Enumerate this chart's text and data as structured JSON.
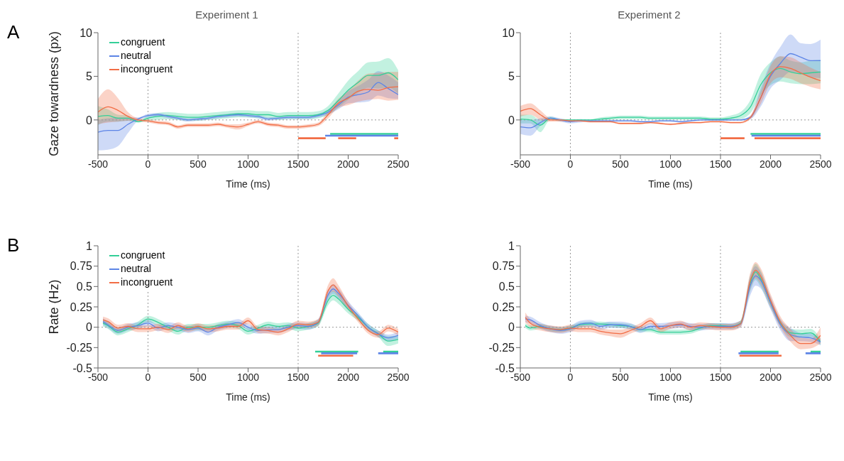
{
  "chart_data": [
    {
      "type": "line",
      "title": "Experiment 1",
      "xlabel": "Time (ms)",
      "ylabel": "Gaze towardness (px)",
      "annotations": [
        "A"
      ],
      "legend": "top left",
      "line_style": "solid",
      "xlim": [
        -500,
        2500
      ],
      "xticks": [
        -500,
        0,
        500,
        1000,
        1500,
        2000,
        2500
      ],
      "ylim": [
        -4,
        10
      ],
      "yticks": [
        0,
        5,
        10
      ],
      "x": [
        -500,
        -400,
        -300,
        -200,
        -100,
        0,
        100,
        200,
        300,
        400,
        500,
        600,
        700,
        800,
        900,
        1000,
        1100,
        1200,
        1300,
        1400,
        1500,
        1600,
        1700,
        1800,
        1900,
        2000,
        2100,
        2200,
        2300,
        2400,
        2500
      ],
      "ref_lines": [
        {
          "axis": "x",
          "value": 0,
          "line_style": "dotted",
          "color": "#999999"
        },
        {
          "axis": "x",
          "value": 1500,
          "line_style": "dotted",
          "color": "#999999"
        },
        {
          "axis": "y",
          "value": 0,
          "line_style": "dotted",
          "color": "#999999"
        }
      ],
      "series": [
        {
          "name": "congruent",
          "color": "#34cf98",
          "values": [
            0.4,
            0.5,
            0.2,
            0.2,
            -0.2,
            0.2,
            0.4,
            0.5,
            0.4,
            0.3,
            0.3,
            0.4,
            0.5,
            0.6,
            0.7,
            0.7,
            0.6,
            0.6,
            0.4,
            0.5,
            0.5,
            0.5,
            0.6,
            1.1,
            2.2,
            3.4,
            4.3,
            5.1,
            5.1,
            5.4,
            4.6
          ],
          "lower": [
            -0.6,
            -0.2,
            -0.2,
            -0.1,
            -0.3,
            -0.1,
            0,
            0.1,
            0,
            -0.1,
            -0.1,
            0,
            0.1,
            0.2,
            0.3,
            0.3,
            0.2,
            0.2,
            0,
            0.1,
            0.1,
            0.1,
            0.2,
            0.6,
            1.4,
            2.3,
            3.1,
            3.7,
            3.6,
            3.7,
            3.0
          ],
          "upper": [
            1.6,
            1.2,
            0.6,
            0.5,
            -0.1,
            0.5,
            0.8,
            0.9,
            0.8,
            0.7,
            0.7,
            0.8,
            0.9,
            1.0,
            1.1,
            1.1,
            1.0,
            1.0,
            0.8,
            0.9,
            0.9,
            0.9,
            1.0,
            1.6,
            3.0,
            4.5,
            5.6,
            6.6,
            6.7,
            7.1,
            5.7
          ]
        },
        {
          "name": "neutral",
          "color": "#5d85e6",
          "values": [
            -1.4,
            -1.2,
            -1.2,
            -0.5,
            0.1,
            0.5,
            0.6,
            0.4,
            0.2,
            0,
            0.1,
            0.2,
            0.4,
            0.5,
            0.6,
            0.5,
            0.4,
            0.1,
            0.2,
            0.3,
            0.3,
            0.3,
            0.5,
            0.9,
            1.7,
            2.6,
            2.9,
            3.2,
            4.3,
            3.6,
            2.9
          ],
          "lower": [
            -3.5,
            -3.4,
            -3.0,
            -1.5,
            -0.1,
            0.3,
            0.4,
            0.2,
            0,
            -0.2,
            -0.1,
            0,
            0.2,
            0.3,
            0.4,
            0.3,
            0.2,
            -0.1,
            0,
            0.1,
            0.1,
            0.1,
            0.3,
            0.6,
            1.2,
            1.9,
            2.0,
            2.1,
            2.8,
            2.5,
            2.4
          ],
          "upper": [
            0.0,
            0.2,
            0.3,
            0.3,
            0.3,
            0.7,
            0.8,
            0.6,
            0.4,
            0.2,
            0.3,
            0.4,
            0.6,
            0.7,
            0.8,
            0.7,
            0.6,
            0.3,
            0.4,
            0.5,
            0.5,
            0.5,
            0.7,
            1.2,
            2.2,
            3.3,
            3.9,
            4.6,
            5.6,
            5.1,
            4.3
          ]
        },
        {
          "name": "incongruent",
          "color": "#f26d45",
          "values": [
            0.9,
            1.5,
            1.1,
            0.4,
            0,
            -0.1,
            -0.3,
            -0.4,
            -0.8,
            -0.6,
            -0.6,
            -0.6,
            -0.5,
            -0.7,
            -0.8,
            -0.5,
            -0.2,
            -0.5,
            -0.6,
            -0.8,
            -0.8,
            -0.7,
            -0.5,
            0.6,
            1.9,
            2.5,
            3.3,
            3.5,
            3.4,
            3.7,
            3.8
          ],
          "lower": [
            -0.5,
            -0.3,
            -0.2,
            -0.1,
            -0.2,
            -0.3,
            -0.5,
            -0.6,
            -1.0,
            -0.8,
            -0.8,
            -0.8,
            -0.7,
            -0.9,
            -1.1,
            -0.7,
            -0.4,
            -0.7,
            -0.8,
            -1.0,
            -1.0,
            -0.9,
            -0.7,
            0.2,
            1.4,
            1.7,
            2.1,
            2.3,
            2.4,
            2.2,
            2.3
          ],
          "upper": [
            2.4,
            3.5,
            2.5,
            0.9,
            0.2,
            0.1,
            -0.1,
            -0.2,
            -0.6,
            -0.4,
            -0.4,
            -0.4,
            -0.3,
            -0.5,
            -0.5,
            -0.3,
            0,
            -0.3,
            -0.4,
            -0.6,
            -0.6,
            -0.5,
            -0.3,
            1.0,
            2.4,
            3.3,
            4.5,
            5.3,
            5.4,
            5.5,
            5.5
          ]
        },
        {
          "color": "#34cf98",
          "x": [
            1820,
            2500
          ],
          "values": [
            -1.6,
            -1.6
          ]
        },
        {
          "color": "#5d85e6",
          "x": [
            1770,
            2500
          ],
          "values": [
            -1.8,
            -1.8
          ]
        },
        {
          "color": "#f26d45",
          "x": [
            1500,
            1775,
            1776,
            1900,
            2080,
            2081,
            2460,
            2500
          ],
          "values": [
            -2.1,
            -2.1,
            null,
            -2.1,
            -2.1,
            null,
            -2.1,
            -2.1
          ]
        }
      ]
    },
    {
      "type": "line",
      "title": "Experiment 2",
      "xlabel": "Time (ms)",
      "line_style": "solid",
      "xlim": [
        -500,
        2500
      ],
      "xticks": [
        -500,
        0,
        500,
        1000,
        1500,
        2000,
        2500
      ],
      "ylim": [
        -4,
        10
      ],
      "yticks": [
        0,
        5,
        10
      ],
      "x": [
        -500,
        -400,
        -300,
        -200,
        -100,
        0,
        100,
        200,
        300,
        400,
        500,
        600,
        700,
        800,
        900,
        1000,
        1100,
        1200,
        1300,
        1400,
        1500,
        1600,
        1700,
        1800,
        1900,
        2000,
        2100,
        2200,
        2300,
        2400,
        2500
      ],
      "ref_lines": [
        {
          "axis": "x",
          "value": 0,
          "line_style": "dotted",
          "color": "#999999"
        },
        {
          "axis": "x",
          "value": 1500,
          "line_style": "dotted",
          "color": "#999999"
        },
        {
          "axis": "y",
          "value": 0,
          "line_style": "dotted",
          "color": "#999999"
        }
      ],
      "series": [
        {
          "color": "#34cf98",
          "values": [
            0.1,
            0.0,
            -0.6,
            0.2,
            0,
            0,
            0,
            0,
            0.1,
            0.2,
            0.3,
            0.3,
            0.3,
            0.2,
            0.2,
            0.2,
            0.2,
            0.2,
            0.2,
            0.1,
            0.1,
            0.2,
            0.5,
            1.5,
            4.0,
            5.4,
            5.9,
            5.5,
            5.3,
            5.4,
            5.5
          ],
          "lower": [
            -0.4,
            -0.4,
            -1.4,
            0,
            -0.1,
            -0.1,
            -0.1,
            -0.1,
            -0.1,
            0,
            0.1,
            0.1,
            0.1,
            0,
            0,
            0,
            0,
            0,
            0,
            -0.1,
            -0.1,
            0,
            0.1,
            0.8,
            2.8,
            4.0,
            4.4,
            4.2,
            4.1,
            4.1,
            4.2
          ],
          "upper": [
            0.6,
            0.6,
            0,
            0.4,
            0.1,
            0.1,
            0.1,
            0.1,
            0.3,
            0.4,
            0.5,
            0.5,
            0.5,
            0.4,
            0.4,
            0.4,
            0.4,
            0.4,
            0.4,
            0.3,
            0.3,
            0.5,
            0.9,
            2.3,
            5.2,
            6.6,
            7.3,
            6.8,
            6.6,
            6.8,
            6.9
          ]
        },
        {
          "color": "#5d85e6",
          "values": [
            -0.8,
            -0.9,
            -0.3,
            0.2,
            0,
            -0.2,
            -0.1,
            -0.1,
            -0.1,
            -0.1,
            -0.1,
            -0.1,
            -0.2,
            -0.2,
            -0.1,
            -0.1,
            -0.2,
            -0.1,
            0,
            0,
            0,
            0,
            0,
            0.3,
            2.5,
            5.0,
            6.5,
            7.6,
            7.2,
            6.8,
            6.8
          ],
          "lower": [
            -1.6,
            -1.8,
            -0.7,
            0,
            -0.2,
            -0.4,
            -0.3,
            -0.2,
            -0.2,
            -0.2,
            -0.2,
            -0.2,
            -0.3,
            -0.3,
            -0.2,
            -0.2,
            -0.3,
            -0.2,
            -0.1,
            -0.1,
            -0.1,
            -0.1,
            -0.1,
            0.1,
            1.5,
            3.6,
            4.6,
            5.5,
            5.3,
            4.9,
            4.8
          ],
          "upper": [
            0,
            0,
            0.2,
            0.4,
            0.2,
            0,
            0.1,
            0,
            0,
            0,
            0,
            0,
            -0.1,
            -0.1,
            0,
            0,
            -0.1,
            0,
            0.1,
            0.1,
            0.1,
            0.1,
            0.1,
            0.5,
            3.6,
            6.5,
            8.4,
            9.8,
            8.8,
            8.7,
            9.2
          ]
        },
        {
          "color": "#f26d45",
          "values": [
            1.0,
            1.3,
            0.6,
            0,
            0,
            -0.1,
            -0.1,
            -0.2,
            -0.2,
            -0.2,
            -0.4,
            -0.4,
            -0.4,
            -0.3,
            -0.4,
            -0.5,
            -0.4,
            -0.3,
            -0.3,
            -0.2,
            -0.2,
            -0.3,
            -0.3,
            0.3,
            2.5,
            5.2,
            6.1,
            5.9,
            5.4,
            4.9,
            4.5
          ],
          "lower": [
            0.4,
            0.6,
            0,
            -0.2,
            -0.2,
            -0.2,
            -0.2,
            -0.3,
            -0.3,
            -0.3,
            -0.5,
            -0.5,
            -0.5,
            -0.4,
            -0.5,
            -0.6,
            -0.5,
            -0.4,
            -0.4,
            -0.3,
            -0.3,
            -0.4,
            -0.4,
            0.1,
            1.8,
            4.2,
            4.9,
            4.7,
            4.2,
            3.8,
            3.5
          ],
          "upper": [
            1.6,
            1.9,
            1.1,
            0.2,
            0.1,
            0,
            0,
            -0.1,
            -0.1,
            -0.1,
            -0.3,
            -0.3,
            -0.3,
            -0.2,
            -0.3,
            -0.4,
            -0.3,
            -0.2,
            -0.2,
            -0.1,
            -0.1,
            -0.2,
            -0.2,
            0.5,
            3.2,
            6.2,
            7.3,
            7.2,
            6.6,
            6.0,
            5.5
          ]
        },
        {
          "color": "#34cf98",
          "x": [
            1800,
            2500
          ],
          "values": [
            -1.6,
            -1.6
          ]
        },
        {
          "color": "#5d85e6",
          "x": [
            1810,
            2500
          ],
          "values": [
            -1.8,
            -1.8
          ]
        },
        {
          "color": "#f26d45",
          "x": [
            1500,
            1740,
            1741,
            1840,
            2500
          ],
          "values": [
            -2.1,
            -2.1,
            null,
            -2.1,
            -2.1
          ]
        }
      ]
    },
    {
      "type": "line",
      "xlabel": "Time (ms)",
      "ylabel": "Rate (Hz)",
      "annotations": [
        "B"
      ],
      "legend": "top left",
      "line_style": "solid",
      "xlim": [
        -500,
        2500
      ],
      "xticks": [
        -500,
        0,
        500,
        1000,
        1500,
        2000,
        2500
      ],
      "ylim": [
        -0.5,
        1
      ],
      "yticks": [
        -0.5,
        -0.25,
        0,
        0.25,
        0.5,
        0.75,
        1
      ],
      "x": [
        -450,
        -400,
        -300,
        -200,
        -100,
        0,
        100,
        200,
        300,
        400,
        500,
        600,
        700,
        800,
        900,
        1000,
        1100,
        1200,
        1300,
        1400,
        1500,
        1600,
        1700,
        1800,
        1850,
        1900,
        2000,
        2100,
        2200,
        2300,
        2400,
        2500
      ],
      "ref_lines": [
        {
          "axis": "x",
          "value": 0,
          "line_style": "dotted",
          "color": "#999999"
        },
        {
          "axis": "x",
          "value": 1500,
          "line_style": "dotted",
          "color": "#999999"
        },
        {
          "axis": "y",
          "value": 0,
          "line_style": "dotted",
          "color": "#999999"
        }
      ],
      "series": [
        {
          "name": "congruent",
          "color": "#34cf98",
          "values": [
            0.05,
            0.02,
            -0.06,
            -0.02,
            0.03,
            0.1,
            0.06,
            0,
            -0.05,
            0,
            0,
            0,
            0.02,
            0.04,
            0.02,
            -0.05,
            -0.01,
            0.03,
            0.01,
            0.02,
            -0.01,
            0.01,
            0.05,
            0.33,
            0.39,
            0.35,
            0.22,
            0.12,
            0,
            -0.08,
            -0.17,
            -0.15
          ],
          "lower": [
            0.01,
            -0.02,
            -0.1,
            -0.06,
            -0.01,
            0.06,
            0.02,
            -0.04,
            -0.09,
            -0.04,
            -0.04,
            -0.04,
            -0.02,
            0,
            -0.02,
            -0.09,
            -0.05,
            -0.01,
            -0.03,
            -0.02,
            -0.05,
            -0.03,
            0.01,
            0.27,
            0.33,
            0.29,
            0.17,
            0.08,
            -0.04,
            -0.12,
            -0.23,
            -0.2
          ],
          "upper": [
            0.1,
            0.06,
            -0.02,
            0.02,
            0.07,
            0.14,
            0.1,
            0.04,
            -0.01,
            0.04,
            0.04,
            0.04,
            0.06,
            0.08,
            0.06,
            -0.01,
            0.03,
            0.07,
            0.05,
            0.06,
            0.03,
            0.05,
            0.09,
            0.39,
            0.45,
            0.41,
            0.27,
            0.16,
            0.04,
            -0.04,
            -0.11,
            -0.1
          ]
        },
        {
          "name": "neutral",
          "color": "#5d85e6",
          "values": [
            0.07,
            0.03,
            -0.04,
            0,
            0.02,
            0.05,
            -0.01,
            0.02,
            0,
            -0.03,
            -0.01,
            -0.06,
            0,
            0.03,
            0.06,
            0,
            -0.04,
            -0.03,
            -0.03,
            0,
            0.02,
            0.01,
            0.06,
            0.4,
            0.47,
            0.42,
            0.27,
            0.14,
            0,
            -0.08,
            -0.13,
            -0.1
          ],
          "lower": [
            0.03,
            -0.01,
            -0.08,
            -0.04,
            -0.02,
            0.01,
            -0.05,
            -0.02,
            -0.04,
            -0.07,
            -0.05,
            -0.1,
            -0.04,
            -0.01,
            0.02,
            -0.04,
            -0.08,
            -0.07,
            -0.07,
            -0.04,
            -0.02,
            -0.03,
            0.02,
            0.34,
            0.41,
            0.36,
            0.22,
            0.1,
            -0.04,
            -0.12,
            -0.17,
            -0.14
          ],
          "upper": [
            0.11,
            0.07,
            0,
            0.04,
            0.06,
            0.09,
            0.03,
            0.06,
            0.04,
            0.01,
            0.03,
            -0.02,
            0.04,
            0.07,
            0.1,
            0.04,
            0,
            0.01,
            0.01,
            0.04,
            0.06,
            0.05,
            0.1,
            0.46,
            0.53,
            0.48,
            0.32,
            0.18,
            0.04,
            -0.04,
            -0.09,
            -0.06
          ]
        },
        {
          "name": "incongruent",
          "color": "#f26d45",
          "values": [
            0.09,
            0.07,
            -0.01,
            0.01,
            -0.02,
            -0.02,
            0,
            -0.03,
            0.02,
            -0.02,
            0.01,
            -0.02,
            -0.01,
            0.01,
            0.01,
            0.08,
            -0.03,
            -0.04,
            -0.06,
            -0.02,
            0.04,
            0.03,
            0.06,
            0.45,
            0.52,
            0.45,
            0.26,
            0.1,
            -0.04,
            -0.09,
            -0.01,
            -0.06
          ],
          "lower": [
            0.05,
            0.03,
            -0.05,
            -0.03,
            -0.06,
            -0.06,
            -0.04,
            -0.07,
            -0.02,
            -0.06,
            -0.03,
            -0.06,
            -0.05,
            -0.03,
            -0.03,
            0.04,
            -0.07,
            -0.08,
            -0.1,
            -0.06,
            0,
            -0.01,
            0.02,
            0.38,
            0.44,
            0.38,
            0.21,
            0.06,
            -0.08,
            -0.13,
            -0.05,
            -0.1
          ],
          "upper": [
            0.13,
            0.11,
            0.03,
            0.05,
            0.02,
            0.02,
            0.04,
            0.01,
            0.06,
            0.02,
            0.05,
            0.02,
            0.03,
            0.05,
            0.05,
            0.12,
            0.01,
            0,
            -0.02,
            0.02,
            0.08,
            0.07,
            0.1,
            0.52,
            0.6,
            0.52,
            0.31,
            0.14,
            0,
            -0.05,
            0.03,
            -0.02
          ]
        },
        {
          "color": "#34cf98",
          "x": [
            1670,
            2100,
            2101,
            2350,
            2500
          ],
          "values": [
            -0.3,
            -0.3,
            null,
            -0.3,
            -0.3
          ]
        },
        {
          "color": "#5d85e6",
          "x": [
            1730,
            2090,
            2091,
            2300,
            2500
          ],
          "values": [
            -0.32,
            -0.32,
            null,
            -0.32,
            -0.32
          ]
        },
        {
          "color": "#f26d45",
          "x": [
            1700,
            2050
          ],
          "values": [
            -0.35,
            -0.35
          ]
        }
      ]
    },
    {
      "type": "line",
      "xlabel": "Time (ms)",
      "line_style": "solid",
      "xlim": [
        -500,
        2500
      ],
      "xticks": [
        -500,
        0,
        500,
        1000,
        1500,
        2000,
        2500
      ],
      "ylim": [
        -0.5,
        1
      ],
      "yticks": [
        -0.5,
        -0.25,
        0,
        0.25,
        0.5,
        0.75,
        1
      ],
      "x": [
        -450,
        -400,
        -300,
        -200,
        -100,
        0,
        100,
        200,
        300,
        400,
        500,
        600,
        700,
        800,
        900,
        1000,
        1100,
        1200,
        1300,
        1400,
        1500,
        1600,
        1700,
        1800,
        1850,
        1900,
        2000,
        2100,
        2200,
        2300,
        2400,
        2500
      ],
      "ref_lines": [
        {
          "axis": "x",
          "value": 0,
          "line_style": "dotted",
          "color": "#999999"
        },
        {
          "axis": "x",
          "value": 1500,
          "line_style": "dotted",
          "color": "#999999"
        },
        {
          "axis": "y",
          "value": 0,
          "line_style": "dotted",
          "color": "#999999"
        }
      ],
      "series": [
        {
          "color": "#34cf98",
          "values": [
            0.02,
            -0.01,
            0.01,
            -0.02,
            -0.03,
            -0.01,
            0.03,
            0.04,
            0.04,
            0.03,
            0.02,
            0.01,
            -0.03,
            -0.03,
            -0.06,
            -0.06,
            -0.06,
            -0.05,
            -0.01,
            0.02,
            0.02,
            0.01,
            0.05,
            0.55,
            0.68,
            0.6,
            0.3,
            0.05,
            -0.07,
            -0.08,
            -0.07,
            -0.18
          ],
          "lower": [
            -0.01,
            -0.04,
            -0.02,
            -0.05,
            -0.06,
            -0.04,
            0,
            0.01,
            0.01,
            0,
            -0.01,
            -0.02,
            -0.06,
            -0.06,
            -0.09,
            -0.09,
            -0.09,
            -0.08,
            -0.04,
            -0.01,
            -0.01,
            -0.02,
            0.02,
            0.45,
            0.58,
            0.5,
            0.24,
            0.01,
            -0.12,
            -0.13,
            -0.12,
            -0.22
          ],
          "upper": [
            0.05,
            0.02,
            0.04,
            0.01,
            0,
            0.02,
            0.06,
            0.07,
            0.07,
            0.06,
            0.05,
            0.04,
            0,
            0,
            -0.03,
            -0.03,
            -0.03,
            -0.02,
            0.02,
            0.05,
            0.05,
            0.04,
            0.08,
            0.65,
            0.78,
            0.7,
            0.36,
            0.09,
            -0.02,
            -0.03,
            -0.02,
            -0.14
          ]
        },
        {
          "color": "#5d85e6",
          "values": [
            0.1,
            0.09,
            0.02,
            -0.02,
            -0.04,
            -0.02,
            0.04,
            0.05,
            0.01,
            0.03,
            0.03,
            0.01,
            -0.03,
            0.01,
            0.01,
            0.02,
            0.03,
            0.01,
            0,
            0.01,
            0.01,
            0.01,
            0.04,
            0.52,
            0.63,
            0.58,
            0.3,
            0.03,
            -0.09,
            -0.12,
            -0.13,
            -0.18
          ],
          "lower": [
            0.06,
            0.05,
            -0.02,
            -0.06,
            -0.08,
            -0.06,
            0,
            0.01,
            -0.03,
            -0.01,
            -0.01,
            -0.03,
            -0.07,
            -0.03,
            -0.03,
            -0.02,
            -0.01,
            -0.03,
            -0.04,
            -0.03,
            -0.03,
            -0.03,
            0,
            0.4,
            0.51,
            0.48,
            0.22,
            -0.04,
            -0.17,
            -0.17,
            -0.18,
            -0.22
          ],
          "upper": [
            0.14,
            0.13,
            0.06,
            0.02,
            0,
            0.02,
            0.08,
            0.09,
            0.05,
            0.07,
            0.07,
            0.05,
            0.01,
            0.05,
            0.05,
            0.06,
            0.07,
            0.05,
            0.04,
            0.05,
            0.05,
            0.05,
            0.08,
            0.64,
            0.75,
            0.68,
            0.38,
            0.1,
            -0.01,
            -0.07,
            -0.08,
            -0.14
          ]
        },
        {
          "color": "#f26d45",
          "values": [
            0.12,
            0.05,
            0,
            -0.02,
            -0.03,
            -0.01,
            -0.02,
            -0.02,
            -0.05,
            -0.07,
            -0.08,
            -0.04,
            0.01,
            0.08,
            -0.02,
            0.02,
            0.04,
            0,
            0.02,
            0.01,
            0,
            0,
            0.04,
            0.58,
            0.7,
            0.63,
            0.33,
            0.06,
            -0.1,
            -0.2,
            -0.2,
            -0.1
          ],
          "lower": [
            0.06,
            0,
            -0.04,
            -0.06,
            -0.07,
            -0.05,
            -0.06,
            -0.06,
            -0.09,
            -0.11,
            -0.13,
            -0.08,
            -0.03,
            0.04,
            -0.06,
            -0.02,
            0,
            -0.04,
            -0.02,
            -0.03,
            -0.04,
            -0.04,
            0,
            0.48,
            0.6,
            0.53,
            0.25,
            -0.01,
            -0.18,
            -0.27,
            -0.26,
            -0.2
          ],
          "upper": [
            0.18,
            0.1,
            0.04,
            0.02,
            0.01,
            0.03,
            0.02,
            0.02,
            -0.01,
            -0.03,
            -0.03,
            0,
            0.05,
            0.12,
            0.02,
            0.06,
            0.08,
            0.04,
            0.06,
            0.05,
            0.04,
            0.04,
            0.08,
            0.68,
            0.8,
            0.73,
            0.41,
            0.13,
            -0.02,
            -0.13,
            -0.14,
            0
          ]
        },
        {
          "color": "#34cf98",
          "x": [
            1700,
            2080,
            2081,
            2400,
            2500
          ],
          "values": [
            -0.3,
            -0.3,
            null,
            -0.3,
            -0.3
          ]
        },
        {
          "color": "#5d85e6",
          "x": [
            1680,
            2080,
            2081,
            2350,
            2500
          ],
          "values": [
            -0.32,
            -0.32,
            null,
            -0.32,
            -0.32
          ]
        },
        {
          "color": "#f26d45",
          "x": [
            1690,
            2110
          ],
          "values": [
            -0.35,
            -0.35
          ]
        }
      ]
    }
  ]
}
